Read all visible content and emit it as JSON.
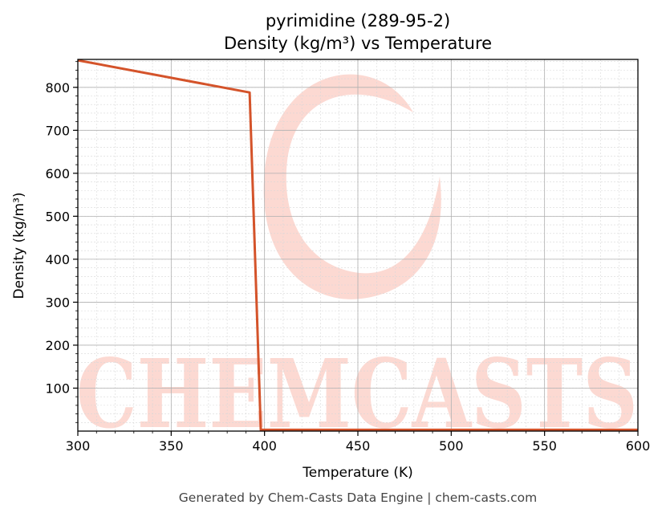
{
  "chart_data": {
    "type": "line",
    "title": "pyrimidine (289-95-2)",
    "subtitle": "Density (kg/m³) vs Temperature",
    "xlabel": "Temperature (K)",
    "ylabel": "Density (kg/m³)",
    "xlim": [
      300,
      600
    ],
    "ylim": [
      0,
      865
    ],
    "xticks": [
      300,
      350,
      400,
      450,
      500,
      550,
      600
    ],
    "yticks": [
      100,
      200,
      300,
      400,
      500,
      600,
      700,
      800
    ],
    "grid": true,
    "series": [
      {
        "color": "#d4532a",
        "x": [
          300,
          392,
          398,
          600
        ],
        "y": [
          863,
          788,
          3,
          3
        ]
      }
    ]
  },
  "watermark": "CHEMCASTS",
  "footer": "Generated by Chem-Casts Data Engine | chem-casts.com"
}
